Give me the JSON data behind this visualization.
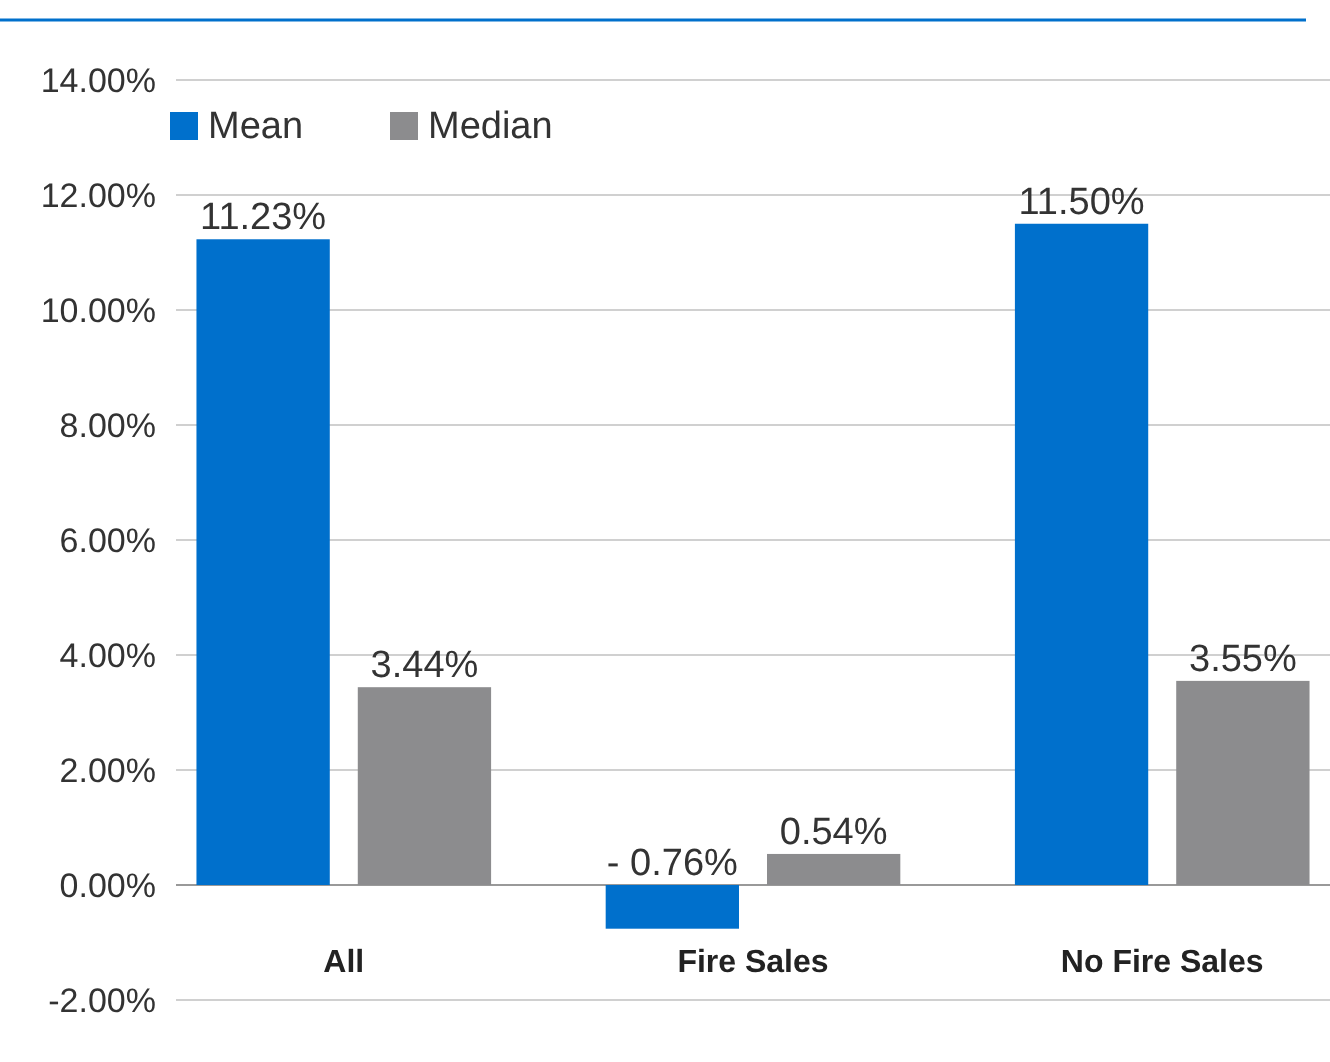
{
  "chart_data": {
    "type": "bar",
    "categories": [
      "All",
      "Fire Sales",
      "No Fire Sales"
    ],
    "series": [
      {
        "name": "Mean",
        "color": "#0070cc",
        "values": [
          11.23,
          -0.76,
          11.5
        ],
        "value_labels": [
          "11.23%",
          "- 0.76%",
          "11.50%"
        ]
      },
      {
        "name": "Median",
        "color": "#8c8c8e",
        "values": [
          3.44,
          0.54,
          3.55
        ],
        "value_labels": [
          "3.44%",
          "0.54%",
          "3.55%"
        ]
      }
    ],
    "ylim": [
      -2,
      14
    ],
    "yticks": [
      {
        "value": -2,
        "label": "-2.00%"
      },
      {
        "value": 0,
        "label": "0.00%"
      },
      {
        "value": 2,
        "label": "2.00%"
      },
      {
        "value": 4,
        "label": "4.00%"
      },
      {
        "value": 6,
        "label": "6.00%"
      },
      {
        "value": 8,
        "label": "8.00%"
      },
      {
        "value": 10,
        "label": "10.00%"
      },
      {
        "value": 12,
        "label": "12.00%"
      },
      {
        "value": 14,
        "label": "14.00%"
      }
    ],
    "grid": "y",
    "legend": "top left"
  }
}
